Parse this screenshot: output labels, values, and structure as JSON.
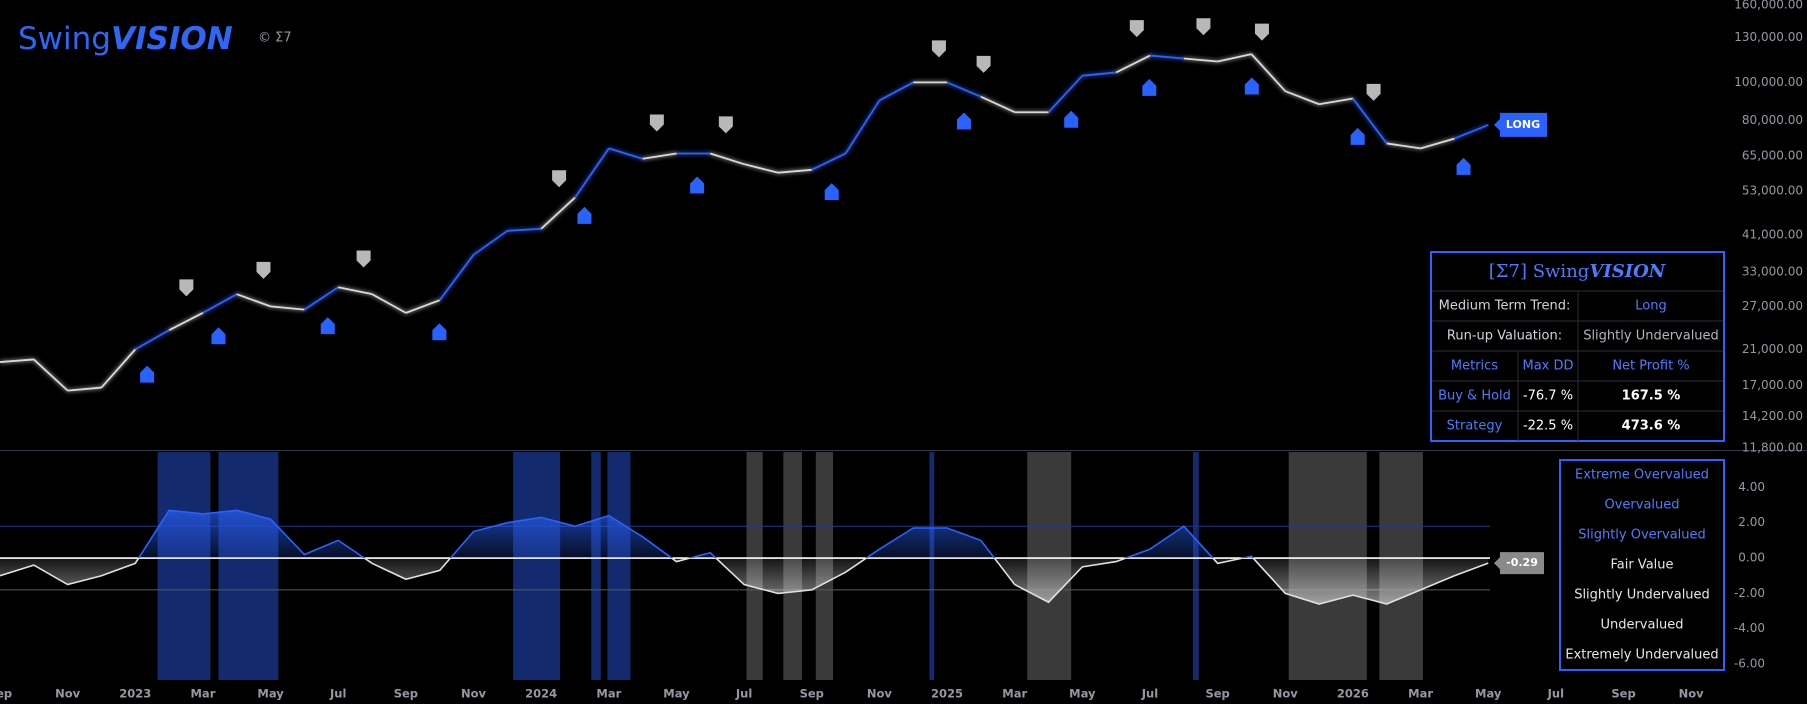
{
  "header": {
    "brand": [
      "Swing",
      "VISION"
    ],
    "copyright": "© Σ7"
  },
  "table": {
    "title": [
      "[Σ7] Swing",
      "VISION"
    ],
    "rows": [
      [
        "Medium Term Trend:",
        "Long"
      ],
      [
        "Run-up Valuation:",
        "Slightly Undervalued"
      ],
      [
        "Metrics",
        "Max DD",
        "Net Profit %"
      ],
      [
        "Buy & Hold",
        "-76.7 %",
        "167.5 %"
      ],
      [
        "Strategy",
        "-22.5 %",
        "473.6 %"
      ]
    ]
  },
  "valuation_legend": [
    "Extreme Overvalued",
    "Overvalued",
    "Slightly Overvalued",
    "Fair Value",
    "Slightly Undervalued",
    "Undervalued",
    "Extremely Undervalued"
  ],
  "chart_data": [
    {
      "type": "line",
      "log_scale": true,
      "x": [
        0,
        1,
        2,
        3,
        4,
        5,
        6,
        7,
        8,
        9,
        10,
        11,
        12,
        13,
        14,
        15,
        16,
        17,
        18,
        19,
        20,
        21,
        22,
        23,
        24,
        25,
        26,
        27,
        28,
        29,
        30,
        31,
        32,
        33,
        34,
        35,
        36,
        37,
        38,
        39,
        40,
        41,
        42,
        43,
        44
      ],
      "values": [
        19500,
        19800,
        16500,
        16800,
        21000,
        23500,
        26000,
        29000,
        27000,
        26500,
        30200,
        29000,
        26000,
        28000,
        36500,
        42000,
        42500,
        51000,
        68000,
        64000,
        66000,
        66000,
        62000,
        59000,
        60000,
        66000,
        90000,
        100000,
        100000,
        92000,
        84000,
        84000,
        104000,
        106000,
        117000,
        115000,
        113000,
        118000,
        95000,
        88000,
        91000,
        70000,
        68000,
        72000,
        78000
      ],
      "colors": [
        "#d9d9d9",
        "#d9d9d9",
        "#d9d9d9",
        "#d9d9d9",
        "#2962ff",
        "#d9d9d9",
        "#2962ff",
        "#d9d9d9",
        "#d9d9d9",
        "#2962ff",
        "#d9d9d9",
        "#d9d9d9",
        "#d9d9d9",
        "#2962ff",
        "#2962ff",
        "#2962ff",
        "#d9d9d9",
        "#2962ff",
        "#2962ff",
        "#d9d9d9",
        "#2962ff",
        "#d9d9d9",
        "#d9d9d9",
        "#d9d9d9",
        "#2962ff",
        "#2962ff",
        "#2962ff",
        "#d9d9d9",
        "#2962ff",
        "#d9d9d9",
        "#d9d9d9",
        "#2962ff",
        "#2962ff",
        "#d9d9d9",
        "#2962ff",
        "#d9d9d9",
        "#d9d9d9",
        "#d9d9d9",
        "#d9d9d9",
        "#d9d9d9",
        "#2962ff",
        "#d9d9d9",
        "#d9d9d9",
        "#2962ff",
        "#2962ff"
      ],
      "buy_signals": [
        4.35,
        6.46,
        9.69,
        12.99,
        17.28,
        20.61,
        24.59,
        28.5,
        31.67,
        33.98,
        37.01,
        40.14,
        43.27
      ],
      "sell_signals": [
        5.51,
        7.79,
        10.75,
        16.53,
        19.42,
        21.46,
        27.76,
        29.08,
        33.61,
        35.58,
        37.31,
        40.61
      ],
      "end_label": "LONG",
      "xlim": [
        0,
        51
      ],
      "ylim": [
        11800,
        160000
      ],
      "yticks": [
        {
          "value": 160000,
          "label": "160,000.00"
        },
        {
          "value": 130000,
          "label": "130,000.00"
        },
        {
          "value": 100000,
          "label": "100,000.00"
        },
        {
          "value": 80000,
          "label": "80,000.00"
        },
        {
          "value": 65000,
          "label": "65,000.00"
        },
        {
          "value": 53000,
          "label": "53,000.00"
        },
        {
          "value": 41000,
          "label": "41,000.00"
        },
        {
          "value": 33000,
          "label": "33,000.00"
        },
        {
          "value": 27000,
          "label": "27,000.00"
        },
        {
          "value": 21000,
          "label": "21,000.00"
        },
        {
          "value": 17000,
          "label": "17,000.00"
        },
        {
          "value": 14200,
          "label": "14,200.00"
        },
        {
          "value": 11800,
          "label": "11,800.00"
        }
      ]
    },
    {
      "type": "area",
      "x": [
        0,
        1,
        2,
        3,
        4,
        5,
        6,
        7,
        8,
        9,
        10,
        11,
        12,
        13,
        14,
        15,
        16,
        17,
        18,
        19,
        20,
        21,
        22,
        23,
        24,
        25,
        26,
        27,
        28,
        29,
        30,
        31,
        32,
        33,
        34,
        35,
        36,
        37,
        38,
        39,
        40,
        41,
        42,
        43,
        44
      ],
      "values": [
        -1,
        -0.4,
        -1.5,
        -1,
        -0.3,
        2.7,
        2.5,
        2.7,
        2.2,
        0.2,
        1.0,
        -0.3,
        -1.2,
        -0.7,
        1.5,
        2.0,
        2.3,
        1.8,
        2.4,
        1.2,
        -0.2,
        0.3,
        -1.5,
        -2.0,
        -1.8,
        -0.8,
        0.5,
        1.7,
        1.7,
        1.0,
        -1.5,
        -2.5,
        -0.5,
        -0.2,
        0.5,
        1.8,
        -0.3,
        0.1,
        -2.0,
        -2.6,
        -2.1,
        -2.6,
        -1.8,
        -1.0,
        -0.29
      ],
      "levels": [
        1.8,
        0,
        -1.8
      ],
      "regions": [
        {
          "start": 4.66,
          "end": 6.22,
          "color": "#142a6e"
        },
        {
          "start": 6.46,
          "end": 8.23,
          "color": "#142a6e"
        },
        {
          "start": 15.17,
          "end": 16.56,
          "color": "#142a6e"
        },
        {
          "start": 17.48,
          "end": 17.76,
          "color": "#142a6e"
        },
        {
          "start": 17.96,
          "end": 18.64,
          "color": "#142a6e"
        },
        {
          "start": 27.48,
          "end": 27.62,
          "color": "#142a6e"
        },
        {
          "start": 35.27,
          "end": 35.44,
          "color": "#142a6e"
        },
        {
          "start": 22.07,
          "end": 22.55,
          "color": "#3a3a3a"
        },
        {
          "start": 23.16,
          "end": 23.71,
          "color": "#3a3a3a"
        },
        {
          "start": 24.12,
          "end": 24.63,
          "color": "#3a3a3a"
        },
        {
          "start": 30.37,
          "end": 31.67,
          "color": "#3a3a3a"
        },
        {
          "start": 38.1,
          "end": 40.41,
          "color": "#3a3a3a"
        },
        {
          "start": 40.78,
          "end": 42.07,
          "color": "#3a3a3a"
        }
      ],
      "xlim": [
        0,
        51
      ],
      "ylim": [
        -6.9,
        6
      ],
      "yticks": [
        {
          "value": 4,
          "label": "4.00"
        },
        {
          "value": 2,
          "label": "2.00"
        },
        {
          "value": 0,
          "label": "0.00"
        },
        {
          "value": -2,
          "label": "-2.00"
        },
        {
          "value": -4,
          "label": "-4.00"
        },
        {
          "value": -6,
          "label": "-6.00"
        }
      ],
      "xticks": [
        {
          "value": 0,
          "label": "Sep"
        },
        {
          "value": 2,
          "label": "Nov"
        },
        {
          "value": 4,
          "label": "2023"
        },
        {
          "value": 6,
          "label": "Mar"
        },
        {
          "value": 8,
          "label": "May"
        },
        {
          "value": 10,
          "label": "Jul"
        },
        {
          "value": 12,
          "label": "Sep"
        },
        {
          "value": 14,
          "label": "Nov"
        },
        {
          "value": 16,
          "label": "2024"
        },
        {
          "value": 18,
          "label": "Mar"
        },
        {
          "value": 20,
          "label": "May"
        },
        {
          "value": 22,
          "label": "Jul"
        },
        {
          "value": 24,
          "label": "Sep"
        },
        {
          "value": 26,
          "label": "Nov"
        },
        {
          "value": 28,
          "label": "2025"
        },
        {
          "value": 30,
          "label": "Mar"
        },
        {
          "value": 32,
          "label": "May"
        },
        {
          "value": 34,
          "label": "Jul"
        },
        {
          "value": 36,
          "label": "Sep"
        },
        {
          "value": 38,
          "label": "Nov"
        },
        {
          "value": 40,
          "label": "2026"
        },
        {
          "value": 42,
          "label": "Mar"
        },
        {
          "value": 44,
          "label": "May"
        },
        {
          "value": 46,
          "label": "Jul"
        },
        {
          "value": 48,
          "label": "Sep"
        },
        {
          "value": 50,
          "label": "Nov"
        }
      ]
    }
  ]
}
